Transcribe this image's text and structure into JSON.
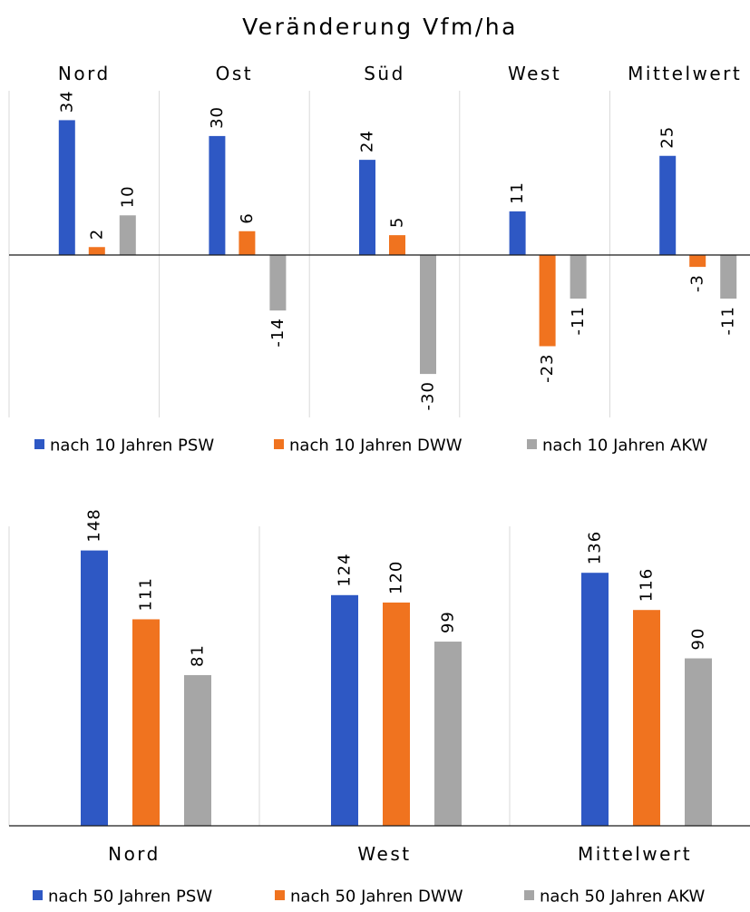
{
  "title": "Veränderung Vfm/ha",
  "colors": {
    "psw": "#2e58c4",
    "dww": "#f0731f",
    "akw": "#a6a6a6"
  },
  "chart_data": [
    {
      "type": "bar",
      "title": "Veränderung Vfm/ha",
      "categories": [
        "Nord",
        "Ost",
        "Süd",
        "West",
        "Mittelwert"
      ],
      "series": [
        {
          "name": "nach 10 Jahren PSW",
          "values": [
            34,
            30,
            24,
            11,
            25
          ]
        },
        {
          "name": "nach 10 Jahren DWW",
          "values": [
            2,
            6,
            5,
            -23,
            -3
          ]
        },
        {
          "name": "nach 10 Jahren AKW",
          "values": [
            10,
            -14,
            -30,
            -11,
            -11
          ]
        }
      ],
      "ylim": [
        -38,
        40
      ],
      "category_labels_position": "top",
      "legend_position": "bottom",
      "grid": false
    },
    {
      "type": "bar",
      "categories": [
        "Nord",
        "West",
        "Mittelwert"
      ],
      "series": [
        {
          "name": "nach 50 Jahren PSW",
          "values": [
            148,
            124,
            136
          ]
        },
        {
          "name": "nach 50 Jahren DWW",
          "values": [
            111,
            120,
            116
          ]
        },
        {
          "name": "nach 50 Jahren AKW",
          "values": [
            81,
            99,
            90
          ]
        }
      ],
      "ylim": [
        0,
        160
      ],
      "category_labels_position": "bottom",
      "legend_position": "bottom",
      "grid": false
    }
  ]
}
